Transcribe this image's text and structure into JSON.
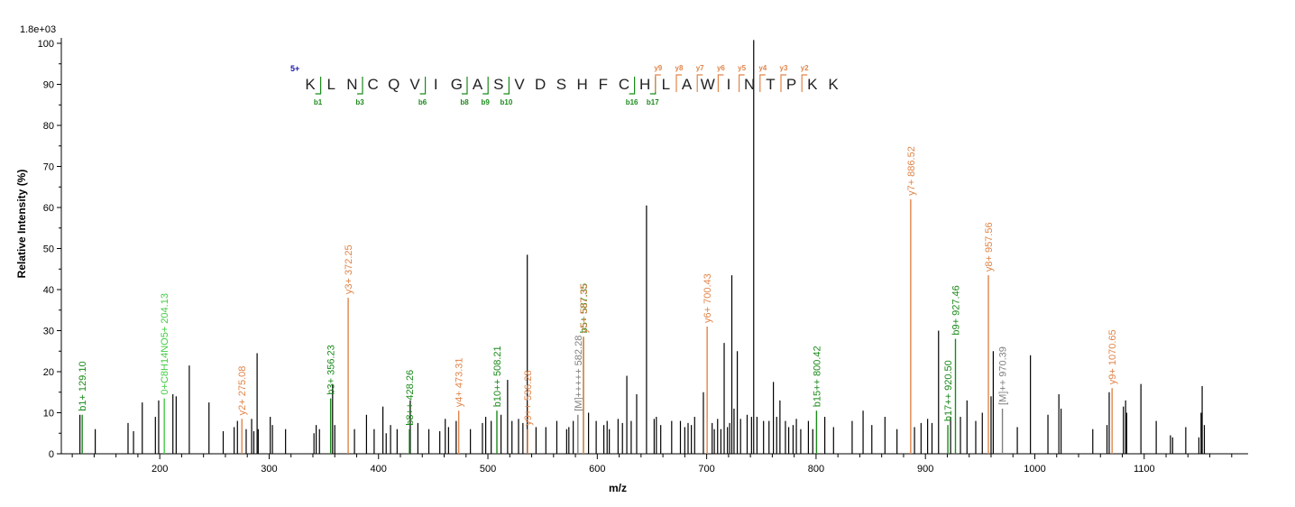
{
  "chart_data": {
    "type": "bar",
    "scale_label": "1.8e+03",
    "xlabel": "m/z",
    "ylabel": "Relative  Intensity (%)",
    "xlim": [
      110,
      1195
    ],
    "ylim": [
      0,
      100
    ],
    "xticks_major": [
      200,
      300,
      400,
      500,
      600,
      700,
      800,
      900,
      1000,
      1100
    ],
    "yticks": [
      0,
      10,
      20,
      30,
      40,
      50,
      60,
      70,
      80,
      90,
      100
    ],
    "colors": {
      "unassigned": "#000000",
      "b": "#1a8a1a",
      "y": "#e0854a",
      "precursor": "#808080",
      "other": "#44cc44",
      "charge": "#1a1aa8"
    },
    "peptide": {
      "charge_label": "5+",
      "residues": [
        "K",
        "L",
        "N",
        "C",
        "Q",
        "V",
        "I",
        "G",
        "A",
        "S",
        "V",
        "D",
        "S",
        "H",
        "F",
        "C",
        "H",
        "L",
        "A",
        "W",
        "I",
        "N",
        "T",
        "P",
        "K",
        "K"
      ],
      "b_ions": [
        {
          "after": 1,
          "label": "b1"
        },
        {
          "after": 3,
          "label": "b3"
        },
        {
          "after": 6,
          "label": "b6"
        },
        {
          "after": 8,
          "label": "b8"
        },
        {
          "after": 9,
          "label": "b9"
        },
        {
          "after": 10,
          "label": "b10"
        },
        {
          "after": 16,
          "label": "b16"
        },
        {
          "after": 17,
          "label": "b17"
        }
      ],
      "y_ions": [
        {
          "after": 17,
          "label": "y9"
        },
        {
          "after": 18,
          "label": "y8"
        },
        {
          "after": 19,
          "label": "y7"
        },
        {
          "after": 20,
          "label": "y6"
        },
        {
          "after": 21,
          "label": "y5"
        },
        {
          "after": 22,
          "label": "y4"
        },
        {
          "after": 23,
          "label": "y3"
        },
        {
          "after": 24,
          "label": "y2"
        }
      ]
    },
    "annotated_peaks": [
      {
        "mz": 129.1,
        "intensity": 9.5,
        "label": "b1+ 129.10",
        "type": "b"
      },
      {
        "mz": 204.13,
        "intensity": 13.5,
        "label": "0+C8H14NO5+ 204.13",
        "type": "other"
      },
      {
        "mz": 275.08,
        "intensity": 8.5,
        "label": "y2+ 275.08",
        "type": "y"
      },
      {
        "mz": 356.23,
        "intensity": 13.5,
        "label": "b3+ 356.23",
        "type": "b"
      },
      {
        "mz": 372.25,
        "intensity": 38,
        "label": "y3+ 372.25",
        "type": "y"
      },
      {
        "mz": 428.26,
        "intensity": 6,
        "label": "b8++ 428.26",
        "type": "b"
      },
      {
        "mz": 473.31,
        "intensity": 10.5,
        "label": "y4+ 473.31",
        "type": "y"
      },
      {
        "mz": 508.21,
        "intensity": 10.5,
        "label": "b10++ 508.21",
        "type": "b"
      },
      {
        "mz": 536.28,
        "intensity": 6,
        "label": "y9++ 536.28",
        "type": "y"
      },
      {
        "mz": 582.28,
        "intensity": 9.5,
        "label": "[M]+++++ 582.28",
        "type": "precursor"
      },
      {
        "mz": 587.35,
        "intensity": 28.5,
        "label": "b5+ 587.35",
        "type": "b"
      },
      {
        "mz": 587.35,
        "intensity": 28.5,
        "label": "y5+ 587.35",
        "type": "y"
      },
      {
        "mz": 700.43,
        "intensity": 31,
        "label": "y6+ 700.43",
        "type": "y"
      },
      {
        "mz": 800.42,
        "intensity": 10.5,
        "label": "b15++ 800.42",
        "type": "b"
      },
      {
        "mz": 886.52,
        "intensity": 62,
        "label": "y7+ 886.52",
        "type": "y"
      },
      {
        "mz": 920.5,
        "intensity": 7,
        "label": "b17++ 920.50",
        "type": "b"
      },
      {
        "mz": 927.46,
        "intensity": 28,
        "label": "b9+ 927.46",
        "type": "b"
      },
      {
        "mz": 957.56,
        "intensity": 43.5,
        "label": "y8+ 957.56",
        "type": "y"
      },
      {
        "mz": 970.39,
        "intensity": 11,
        "label": "[M]++ 970.39",
        "type": "precursor"
      },
      {
        "mz": 1070.65,
        "intensity": 16,
        "label": "y9+ 1070.65",
        "type": "y"
      }
    ],
    "peaks": [
      [
        127,
        9.5
      ],
      [
        141,
        6
      ],
      [
        171,
        7.5
      ],
      [
        176,
        5.5
      ],
      [
        184,
        12.5
      ],
      [
        196,
        9
      ],
      [
        199,
        13
      ],
      [
        212,
        14.5
      ],
      [
        215,
        14
      ],
      [
        227,
        21.5
      ],
      [
        245,
        12.5
      ],
      [
        258,
        5.5
      ],
      [
        268,
        6.5
      ],
      [
        271,
        8
      ],
      [
        279,
        6
      ],
      [
        284,
        8.5
      ],
      [
        286,
        5.5
      ],
      [
        289,
        24.5
      ],
      [
        290,
        6
      ],
      [
        301,
        9
      ],
      [
        303,
        7
      ],
      [
        315,
        6
      ],
      [
        341,
        5
      ],
      [
        343,
        7
      ],
      [
        346,
        6
      ],
      [
        358,
        17
      ],
      [
        360,
        7
      ],
      [
        378,
        6
      ],
      [
        389,
        9.5
      ],
      [
        396,
        6
      ],
      [
        404,
        11.5
      ],
      [
        407,
        5
      ],
      [
        411,
        7
      ],
      [
        417,
        6
      ],
      [
        429,
        13
      ],
      [
        436,
        7.5
      ],
      [
        446,
        6
      ],
      [
        456,
        5.5
      ],
      [
        461,
        8.5
      ],
      [
        464,
        6.5
      ],
      [
        471,
        8
      ],
      [
        484,
        6
      ],
      [
        495,
        7.5
      ],
      [
        498,
        9
      ],
      [
        503,
        8
      ],
      [
        512,
        9.5
      ],
      [
        518,
        18
      ],
      [
        522,
        8
      ],
      [
        528,
        8.5
      ],
      [
        532,
        7.5
      ],
      [
        536,
        48.5
      ],
      [
        544,
        6.5
      ],
      [
        553,
        6.5
      ],
      [
        563,
        8
      ],
      [
        572,
        6
      ],
      [
        574,
        6.5
      ],
      [
        578,
        8
      ],
      [
        592,
        10
      ],
      [
        599,
        8
      ],
      [
        606,
        7
      ],
      [
        609,
        8
      ],
      [
        611,
        6
      ],
      [
        619,
        8.5
      ],
      [
        623,
        7.5
      ],
      [
        627,
        19
      ],
      [
        631,
        8
      ],
      [
        636,
        14.5
      ],
      [
        645,
        60.5
      ],
      [
        652,
        8.5
      ],
      [
        654,
        9
      ],
      [
        658,
        7
      ],
      [
        668,
        8
      ],
      [
        676,
        8
      ],
      [
        680,
        6.5
      ],
      [
        683,
        7.5
      ],
      [
        686,
        7
      ],
      [
        689,
        9
      ],
      [
        697,
        15
      ],
      [
        705,
        7.5
      ],
      [
        707,
        6
      ],
      [
        710,
        8.5
      ],
      [
        713,
        6
      ],
      [
        716,
        27
      ],
      [
        719,
        6.5
      ],
      [
        721,
        7.5
      ],
      [
        723,
        43.5
      ],
      [
        725,
        11
      ],
      [
        728,
        25
      ],
      [
        731,
        8.5
      ],
      [
        737,
        9.5
      ],
      [
        741,
        9
      ],
      [
        743,
        101
      ],
      [
        746,
        9
      ],
      [
        752,
        8
      ],
      [
        757,
        8
      ],
      [
        761,
        17.5
      ],
      [
        764,
        9
      ],
      [
        767,
        13
      ],
      [
        772,
        8
      ],
      [
        775,
        6.5
      ],
      [
        779,
        7
      ],
      [
        782,
        8.5
      ],
      [
        786,
        6
      ],
      [
        793,
        8
      ],
      [
        797,
        6
      ],
      [
        808,
        9
      ],
      [
        816,
        6.5
      ],
      [
        833,
        8
      ],
      [
        843,
        10.5
      ],
      [
        851,
        7
      ],
      [
        863,
        9
      ],
      [
        874,
        6
      ],
      [
        890,
        6.5
      ],
      [
        896,
        7.5
      ],
      [
        902,
        8.5
      ],
      [
        906,
        7.5
      ],
      [
        912,
        30
      ],
      [
        923,
        9
      ],
      [
        932,
        9
      ],
      [
        938,
        13
      ],
      [
        946,
        8
      ],
      [
        952,
        10
      ],
      [
        960,
        14
      ],
      [
        962,
        25
      ],
      [
        984,
        6.5
      ],
      [
        996,
        24
      ],
      [
        1012,
        9.5
      ],
      [
        1022,
        14.5
      ],
      [
        1024,
        11
      ],
      [
        1053,
        6
      ],
      [
        1066,
        7
      ],
      [
        1068,
        15
      ],
      [
        1081,
        11.5
      ],
      [
        1083,
        13
      ],
      [
        1084,
        10
      ],
      [
        1097,
        17
      ],
      [
        1111,
        8
      ],
      [
        1124,
        4.5
      ],
      [
        1126,
        4
      ],
      [
        1138,
        6.5
      ],
      [
        1150,
        4
      ],
      [
        1152,
        10
      ],
      [
        1153,
        16.5
      ],
      [
        1155,
        7
      ]
    ]
  }
}
